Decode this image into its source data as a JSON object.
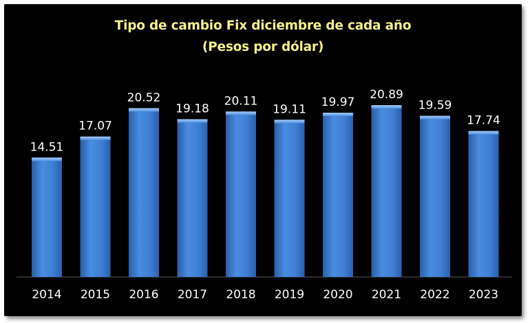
{
  "chart_data": {
    "type": "bar",
    "title": "Tipo de cambio Fix diciembre de cada año",
    "subtitle": "(Pesos por dólar)",
    "categories": [
      "2014",
      "2015",
      "2016",
      "2017",
      "2018",
      "2019",
      "2020",
      "2021",
      "2022",
      "2023"
    ],
    "values": [
      14.51,
      17.07,
      20.52,
      19.18,
      20.11,
      19.11,
      19.97,
      20.89,
      19.59,
      17.74
    ],
    "value_labels": [
      "14.51",
      "17.07",
      "20.52",
      "19.18",
      "20.11",
      "19.11",
      "19.97",
      "20.89",
      "19.59",
      "17.74"
    ],
    "xlabel": "",
    "ylabel": "",
    "ylim": [
      0,
      20.89
    ],
    "grid": false,
    "legend": "none",
    "colors": {
      "background": "#000000",
      "bar": "#3f7fd4",
      "bar_light": "#6aa6ee",
      "bar_dark": "#2a5ea8",
      "title": "#f4f08a",
      "labels": "#ffffff"
    }
  }
}
